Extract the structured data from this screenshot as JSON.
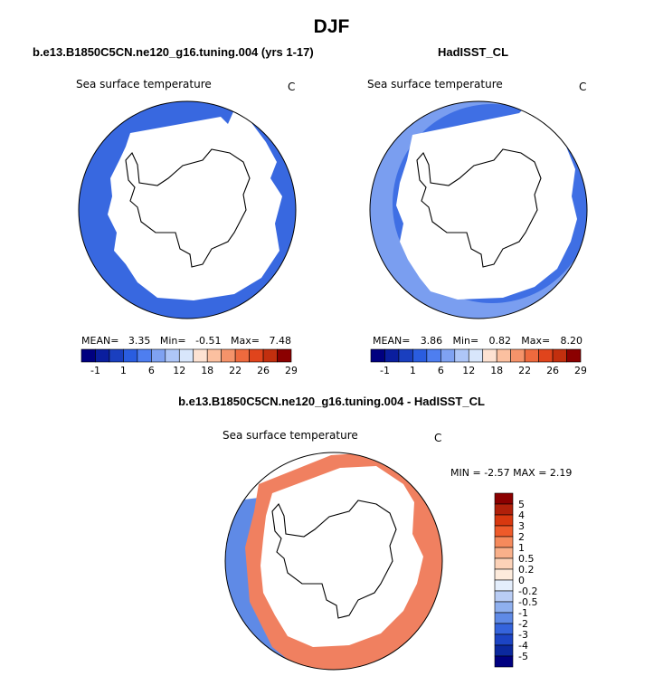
{
  "page": {
    "title": "DJF"
  },
  "panels": [
    {
      "subtitle": "b.e13.B1850C5CN.ne120_g16.tuning.004 (yrs 1-17)",
      "variable": "Sea surface temperature",
      "units": "C",
      "stats": {
        "mean_label": "MEAN=",
        "mean": "3.35",
        "min_label": "Min=",
        "min": "-0.51",
        "max_label": "Max=",
        "max": "7.48"
      }
    },
    {
      "subtitle": "HadISST_CL",
      "variable": "Sea surface temperature",
      "units": "C",
      "stats": {
        "mean_label": "MEAN=",
        "mean": "3.86",
        "min_label": "Min=",
        "min": "0.82",
        "max_label": "Max=",
        "max": "8.20"
      }
    },
    {
      "subtitle": "b.e13.B1850C5CN.ne120_g16.tuning.004 - HadISST_CL",
      "variable": "Sea surface temperature",
      "units": "C",
      "stats": {
        "min_label": "MIN =",
        "min": "-2.57",
        "max_label": "MAX =",
        "max": "2.19"
      }
    }
  ],
  "colorbar_horizontal": {
    "labels": [
      "-1",
      "1",
      "6",
      "12",
      "18",
      "22",
      "26",
      "29"
    ],
    "colors": [
      "#000080",
      "#0a1e9e",
      "#1a3fbf",
      "#2a5de0",
      "#4e7ef0",
      "#7fa2f2",
      "#aec6f7",
      "#d8e6fb",
      "#fde2d2",
      "#fbc0a0",
      "#f5936a",
      "#ee6a3e",
      "#e0441c",
      "#c22f0e",
      "#8b0000"
    ]
  },
  "colorbar_vertical": {
    "labels": [
      "5",
      "4",
      "3",
      "2",
      "1",
      "0.5",
      "0.2",
      "0",
      "-0.2",
      "-0.5",
      "-1",
      "-2",
      "-3",
      "-4",
      "-5"
    ],
    "colors": [
      "#8b0000",
      "#b0200a",
      "#d8380f",
      "#ee5a2a",
      "#f58a5c",
      "#f9b08a",
      "#fcd2b8",
      "#fdebdc",
      "#e4eefc",
      "#b9cdf5",
      "#8fb0ef",
      "#5f8ae6",
      "#3564dc",
      "#1c44c4",
      "#0b289e",
      "#000080"
    ]
  },
  "colors": {
    "ocean_model": "#3868e0",
    "ocean_obs_inner": "#3f6fe4",
    "ocean_obs_outer": "#7a9ef0",
    "diff_positive": "#f08060",
    "diff_negative": "#5f8ae6"
  }
}
